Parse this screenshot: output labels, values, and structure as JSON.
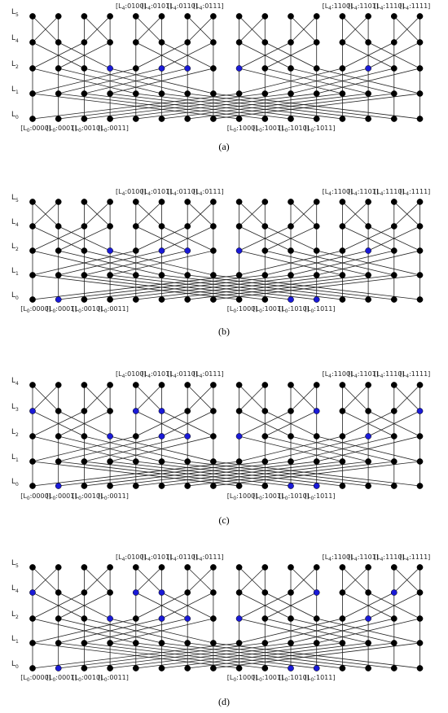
{
  "panels": [
    {
      "caption": "(a)",
      "rows": [
        {
          "letter": "L",
          "index": "5"
        },
        {
          "letter": "L",
          "index": "4"
        },
        {
          "letter": "L",
          "index": "2"
        },
        {
          "letter": "L",
          "index": "1"
        },
        {
          "letter": "L",
          "index": "0"
        }
      ],
      "top_labels": [
        {
          "open": "[L",
          "level": "4",
          "code": ":0100]"
        },
        {
          "open": "[L",
          "level": "4",
          "code": ":0101]"
        },
        {
          "open": "[L",
          "level": "4",
          "code": ":0110]"
        },
        {
          "open": "[L",
          "level": "4",
          "code": ":0111]"
        },
        {
          "open": "[L",
          "level": "4",
          "code": ":1100]"
        },
        {
          "open": "[L",
          "level": "4",
          "code": ":1101]"
        },
        {
          "open": "[L",
          "level": "4",
          "code": ":1110]"
        },
        {
          "open": "[L",
          "level": "4",
          "code": ":1111]"
        }
      ],
      "bottom_labels": [
        {
          "open": "[L",
          "level": "0",
          "code": ":0000]"
        },
        {
          "open": "[L",
          "level": "0",
          "code": ":0001]"
        },
        {
          "open": "[L",
          "level": "0",
          "code": ":0010]"
        },
        {
          "open": "[L",
          "level": "0",
          "code": ":0011]"
        },
        {
          "open": "[L",
          "level": "0",
          "code": ":1000]"
        },
        {
          "open": "[L",
          "level": "0",
          "code": ":1001]"
        },
        {
          "open": "[L",
          "level": "0",
          "code": ":1010]"
        },
        {
          "open": "[L",
          "level": "0",
          "code": ":1011]"
        }
      ]
    },
    {
      "caption": "(b)",
      "rows": [
        {
          "letter": "L",
          "index": "5"
        },
        {
          "letter": "L",
          "index": "4"
        },
        {
          "letter": "L",
          "index": "2"
        },
        {
          "letter": "L",
          "index": "1"
        },
        {
          "letter": "L",
          "index": "0"
        }
      ],
      "top_labels": [
        {
          "open": "[L",
          "level": "4",
          "code": ":0100]"
        },
        {
          "open": "[L",
          "level": "4",
          "code": ":0101]"
        },
        {
          "open": "[L",
          "level": "4",
          "code": ":0110]"
        },
        {
          "open": "[L",
          "level": "4",
          "code": ":0111]"
        },
        {
          "open": "[L",
          "level": "4",
          "code": ":1100]"
        },
        {
          "open": "[L",
          "level": "4",
          "code": ":1101]"
        },
        {
          "open": "[L",
          "level": "4",
          "code": ":1110]"
        },
        {
          "open": "[L",
          "level": "4",
          "code": ":1111]"
        }
      ],
      "bottom_labels": [
        {
          "open": "[L",
          "level": "0",
          "code": ":0000]"
        },
        {
          "open": "[L",
          "level": "0",
          "code": ":0001]"
        },
        {
          "open": "[L",
          "level": "0",
          "code": ":0010]"
        },
        {
          "open": "[L",
          "level": "0",
          "code": ":0011]"
        },
        {
          "open": "[L",
          "level": "0",
          "code": ":1000]"
        },
        {
          "open": "[L",
          "level": "0",
          "code": ":1001]"
        },
        {
          "open": "[L",
          "level": "0",
          "code": ":1010]"
        },
        {
          "open": "[L",
          "level": "0",
          "code": ":1011]"
        }
      ]
    },
    {
      "caption": "(c)",
      "rows": [
        {
          "letter": "L",
          "index": "4"
        },
        {
          "letter": "L",
          "index": "3"
        },
        {
          "letter": "L",
          "index": "2"
        },
        {
          "letter": "L",
          "index": "1"
        },
        {
          "letter": "L",
          "index": "0"
        }
      ],
      "top_labels": [
        {
          "open": "[L",
          "level": "4",
          "code": ":0100]"
        },
        {
          "open": "[L",
          "level": "4",
          "code": ":0101]"
        },
        {
          "open": "[L",
          "level": "4",
          "code": ":0110]"
        },
        {
          "open": "[L",
          "level": "4",
          "code": ":0111]"
        },
        {
          "open": "[L",
          "level": "4",
          "code": ":1100]"
        },
        {
          "open": "[L",
          "level": "4",
          "code": ":1101]"
        },
        {
          "open": "[L",
          "level": "4",
          "code": ":1110]"
        },
        {
          "open": "[L",
          "level": "4",
          "code": ":1111]"
        }
      ],
      "bottom_labels": [
        {
          "open": "[L",
          "level": "0",
          "code": ":0000]"
        },
        {
          "open": "[L",
          "level": "0",
          "code": ":0001]"
        },
        {
          "open": "[L",
          "level": "0",
          "code": ":0010]"
        },
        {
          "open": "[L",
          "level": "0",
          "code": ":0011]"
        },
        {
          "open": "[L",
          "level": "0",
          "code": ":1000]"
        },
        {
          "open": "[L",
          "level": "0",
          "code": ":1001]"
        },
        {
          "open": "[L",
          "level": "0",
          "code": ":1010]"
        },
        {
          "open": "[L",
          "level": "0",
          "code": ":1011]"
        }
      ]
    },
    {
      "caption": "(d)",
      "rows": [
        {
          "letter": "L",
          "index": "5"
        },
        {
          "letter": "L",
          "index": "4"
        },
        {
          "letter": "L",
          "index": "2"
        },
        {
          "letter": "L",
          "index": "1"
        },
        {
          "letter": "L",
          "index": "0"
        }
      ],
      "top_labels": [
        {
          "open": "[L",
          "level": "4",
          "code": ":0100]"
        },
        {
          "open": "[L",
          "level": "4",
          "code": ":0101]"
        },
        {
          "open": "[L",
          "level": "4",
          "code": ":0110]"
        },
        {
          "open": "[L",
          "level": "4",
          "code": ":0111]"
        },
        {
          "open": "[L",
          "level": "4",
          "code": ":1100]"
        },
        {
          "open": "[L",
          "level": "4",
          "code": ":1101]"
        },
        {
          "open": "[L",
          "level": "4",
          "code": ":1110]"
        },
        {
          "open": "[L",
          "level": "4",
          "code": ":1111]"
        }
      ],
      "bottom_labels": [
        {
          "open": "[L",
          "level": "0",
          "code": ":0000]"
        },
        {
          "open": "[L",
          "level": "0",
          "code": ":0001]"
        },
        {
          "open": "[L",
          "level": "0",
          "code": ":0010]"
        },
        {
          "open": "[L",
          "level": "0",
          "code": ":0011]"
        },
        {
          "open": "[L",
          "level": "0",
          "code": ":1000]"
        },
        {
          "open": "[L",
          "level": "0",
          "code": ":1001]"
        },
        {
          "open": "[L",
          "level": "0",
          "code": ":1010]"
        },
        {
          "open": "[L",
          "level": "0",
          "code": ":1011]"
        }
      ]
    }
  ]
}
